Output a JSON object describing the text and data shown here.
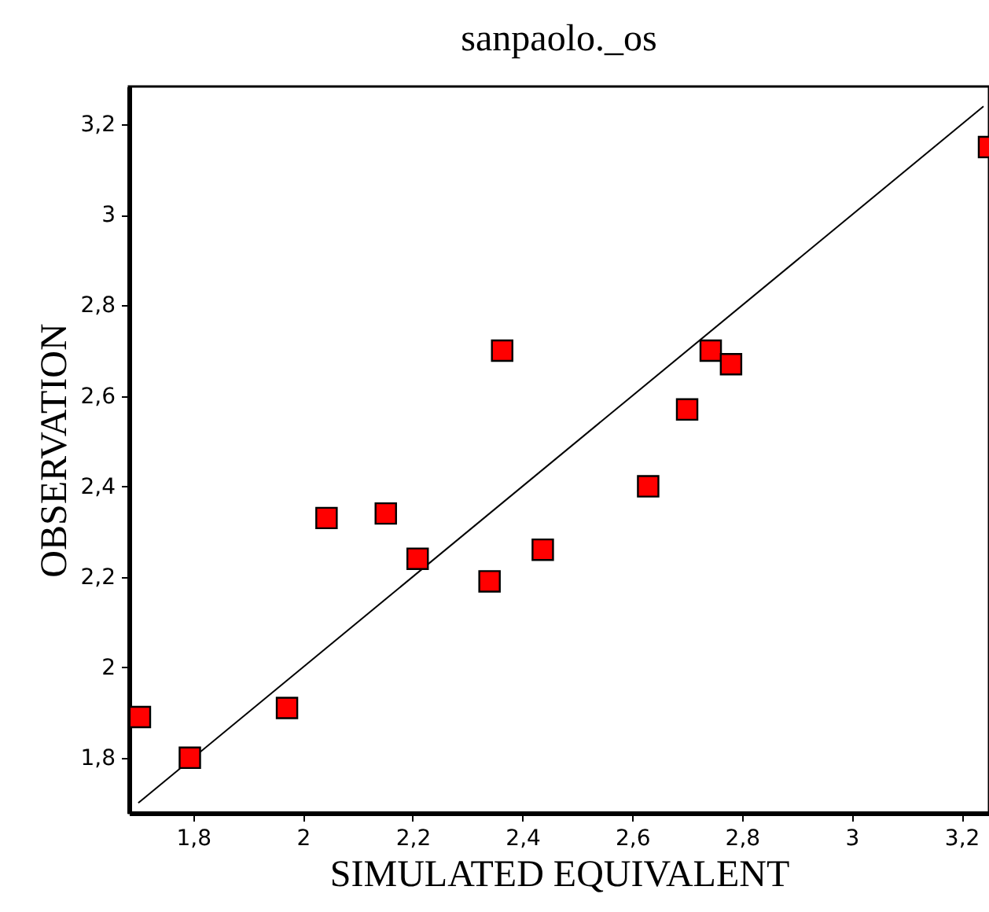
{
  "chart_data": {
    "type": "scatter",
    "title": "sanpaolo._os",
    "xlabel": "SIMULATED EQUIVALENT",
    "ylabel": "OBSERVATION",
    "xlim": [
      1.683,
      3.25
    ],
    "ylim": [
      1.678,
      3.284
    ],
    "xticks": [
      {
        "value": 1.8,
        "label": "1,8"
      },
      2,
      {
        "value": 2.2,
        "label": "2,2"
      },
      {
        "value": 2.4,
        "label": "2,4"
      },
      {
        "value": 2.6,
        "label": "2,6"
      },
      {
        "value": 2.8,
        "label": "2,8"
      },
      3,
      {
        "value": 3.2,
        "label": "3,2"
      }
    ],
    "yticks": [
      {
        "value": 1.8,
        "label": "1,8"
      },
      2,
      {
        "value": 2.2,
        "label": "2,2"
      },
      {
        "value": 2.4,
        "label": "2,4"
      },
      {
        "value": 2.6,
        "label": "2,6"
      },
      {
        "value": 2.8,
        "label": "2,8"
      },
      3,
      {
        "value": 3.2,
        "label": "3,2"
      }
    ],
    "grid": false,
    "series": [
      {
        "marker": "square",
        "color": "#ff0000",
        "x": [
          1.703,
          1.794,
          1.971,
          2.043,
          2.151,
          2.209,
          2.34,
          2.363,
          2.437,
          2.629,
          2.7,
          2.743,
          2.78,
          3.25
        ],
        "values": [
          1.89,
          1.8,
          1.91,
          2.33,
          2.34,
          2.24,
          2.19,
          2.7,
          2.26,
          2.4,
          2.57,
          2.7,
          2.67,
          3.15
        ]
      },
      {
        "type": "line",
        "color": "#000000",
        "x": [
          1.7,
          3.24
        ],
        "values": [
          1.7,
          3.24
        ]
      }
    ]
  }
}
